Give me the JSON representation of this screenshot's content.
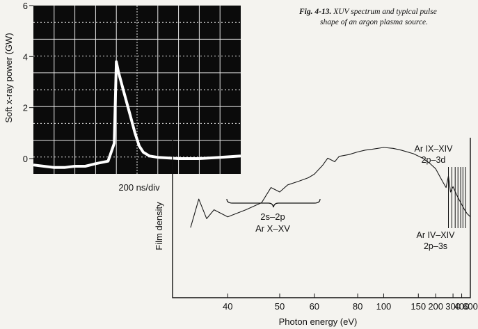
{
  "caption": {
    "label": "Fig. 4-13.",
    "text_line1": "XUV spectrum and typical pulse",
    "text_line2": "shape of an argon plasma source."
  },
  "colors": {
    "scope_bg": "#0b0b0b",
    "scope_grid": "#e8e8e8",
    "trace": "#ffffff",
    "spectrum_line": "#1a1a1a",
    "paper": "#f4f3ef"
  },
  "chart_data": [
    {
      "type": "line",
      "title": "",
      "xlabel": "200 ns/div",
      "ylabel": "Soft x-ray power (GW)",
      "yticks": [
        "6",
        "4",
        "2",
        "0"
      ],
      "ylim": [
        -0.6,
        6
      ],
      "x_divisions": 10,
      "y_divisions": 10,
      "grid": true,
      "series": [
        {
          "x": [
            0,
            0.5,
            1.0,
            1.5,
            2.0,
            2.5,
            3.0,
            3.6,
            3.9,
            4.0,
            4.1,
            4.3,
            4.5,
            4.7,
            4.9,
            5.1,
            5.3,
            5.6,
            6.0,
            7.0,
            8.0,
            9.0,
            10.0
          ],
          "y": [
            -0.25,
            -0.3,
            -0.35,
            -0.35,
            -0.3,
            -0.3,
            -0.2,
            -0.1,
            0.6,
            3.8,
            3.4,
            2.8,
            2.2,
            1.6,
            1.0,
            0.5,
            0.25,
            0.1,
            0.05,
            0.0,
            0.0,
            0.05,
            0.1
          ]
        }
      ]
    },
    {
      "type": "line",
      "title": "",
      "xlabel": "Photon energy (eV)",
      "ylabel": "Film density",
      "xscale": "reciprocal",
      "xticks": [
        "40",
        "50",
        "60",
        "80",
        "100",
        "150",
        "200",
        "300",
        "400",
        "600"
      ],
      "grid": false,
      "annotations": [
        {
          "line1": "2s–2p",
          "line2": "Ar X–XV"
        },
        {
          "line1": "Ar IX–XIV",
          "line2": "2p–3d"
        },
        {
          "line1": "Ar IV–XIV",
          "line2": "2p–3s"
        }
      ],
      "series": [
        {
          "x": [
            35,
            36,
            37,
            38,
            40,
            43,
            46,
            48,
            50,
            52,
            55,
            58,
            60,
            63,
            65,
            68,
            70,
            75,
            80,
            85,
            90,
            100,
            110,
            120,
            140,
            160,
            180,
            200,
            230,
            250,
            265,
            280,
            300,
            330,
            360,
            400,
            450,
            500,
            600
          ],
          "y": [
            0.1,
            0.42,
            0.2,
            0.3,
            0.22,
            0.3,
            0.38,
            0.55,
            0.5,
            0.58,
            0.62,
            0.66,
            0.7,
            0.8,
            0.88,
            0.84,
            0.9,
            0.92,
            0.95,
            0.97,
            0.98,
            1.0,
            0.99,
            0.97,
            0.93,
            0.88,
            0.82,
            0.76,
            0.62,
            0.55,
            0.68,
            0.5,
            0.56,
            0.48,
            0.42,
            0.36,
            0.3,
            0.26,
            0.22
          ]
        }
      ]
    }
  ]
}
